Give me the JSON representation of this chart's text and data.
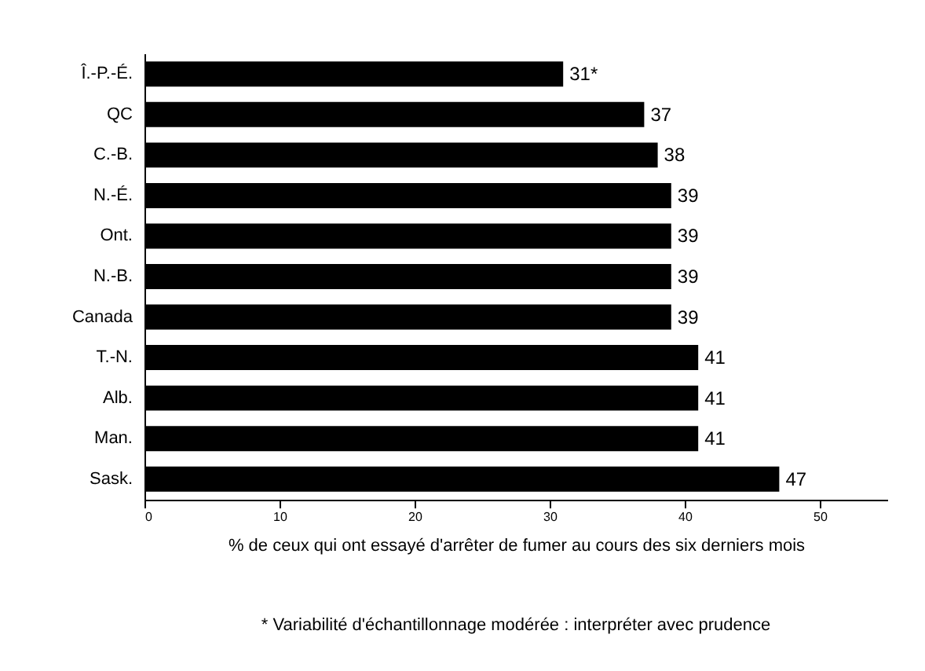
{
  "chart_data": {
    "type": "bar",
    "orientation": "horizontal",
    "categories": [
      "Î.-P.-É.",
      "QC",
      "C.-B.",
      "N.-É.",
      "Ont.",
      "N.-B.",
      "Canada",
      "T.-N.",
      "Alb.",
      "Man.",
      "Sask."
    ],
    "values": [
      31,
      37,
      38,
      39,
      39,
      39,
      39,
      41,
      41,
      41,
      47
    ],
    "value_labels": [
      "31*",
      "37",
      "38",
      "39",
      "39",
      "39",
      "39",
      "41",
      "41",
      "41",
      "47"
    ],
    "color": "#000000",
    "xlim": [
      0,
      55
    ],
    "xticks": [
      0,
      10,
      20,
      30,
      40,
      50
    ],
    "xlabel": "% de ceux qui ont essayé d'arrêter de fumer au cours des six derniers mois",
    "annotations": [
      "* Variabilité d'échantillonnage modérée : interpréter avec prudence"
    ],
    "grid": false
  }
}
